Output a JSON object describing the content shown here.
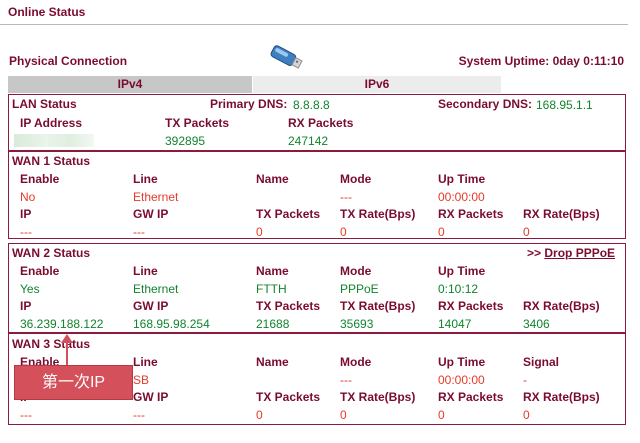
{
  "page": {
    "title": "Online Status",
    "physical_connection": "Physical Connection",
    "system_uptime": "System Uptime: 0day 0:11:10",
    "usb_icon": "usb-drive-icon"
  },
  "tabs": [
    {
      "label": "IPv4",
      "active": true
    },
    {
      "label": "IPv6",
      "active": false
    }
  ],
  "lan": {
    "title": "LAN Status",
    "primary_dns_label": "Primary DNS:",
    "primary_dns": "8.8.8.8",
    "secondary_dns_label": "Secondary DNS:",
    "secondary_dns": "168.95.1.1",
    "ip_label": "IP Address",
    "tx_label": "TX Packets",
    "rx_label": "RX Packets",
    "tx": "392895",
    "rx": "247142"
  },
  "wan1": {
    "title": "WAN 1 Status",
    "h1": [
      "Enable",
      "Line",
      "Name",
      "Mode",
      "Up Time"
    ],
    "v1": [
      "No",
      "Ethernet",
      "",
      "---",
      "00:00:00"
    ],
    "h2": [
      "IP",
      "GW IP",
      "TX Packets",
      "TX Rate(Bps)",
      "RX Packets",
      "RX Rate(Bps)"
    ],
    "v2": [
      "---",
      "---",
      "0",
      "0",
      "0",
      "0"
    ]
  },
  "wan2": {
    "title": "WAN 2 Status",
    "drop_prefix": ">> ",
    "drop_label": "Drop PPPoE",
    "h1": [
      "Enable",
      "Line",
      "Name",
      "Mode",
      "Up Time"
    ],
    "v1": [
      "Yes",
      "Ethernet",
      "FTTH",
      "PPPoE",
      "0:10:12"
    ],
    "h2": [
      "IP",
      "GW IP",
      "TX Packets",
      "TX Rate(Bps)",
      "RX Packets",
      "RX Rate(Bps)"
    ],
    "v2": [
      "36.239.188.122",
      "168.95.98.254",
      "21688",
      "35693",
      "14047",
      "3406"
    ]
  },
  "wan3": {
    "title": "WAN 3 Status",
    "h1": [
      "Enable",
      "Line",
      "Name",
      "Mode",
      "Up Time",
      "Signal"
    ],
    "v1": [
      "",
      "SB",
      "",
      "---",
      "00:00:00",
      "-"
    ],
    "h2": [
      "IP",
      "GW IP",
      "TX Packets",
      "TX Rate(Bps)",
      "RX Packets",
      "RX Rate(Bps)"
    ],
    "v2": [
      "---",
      "---",
      "0",
      "0",
      "0",
      "0"
    ]
  },
  "callout": {
    "text": "第一次IP"
  }
}
